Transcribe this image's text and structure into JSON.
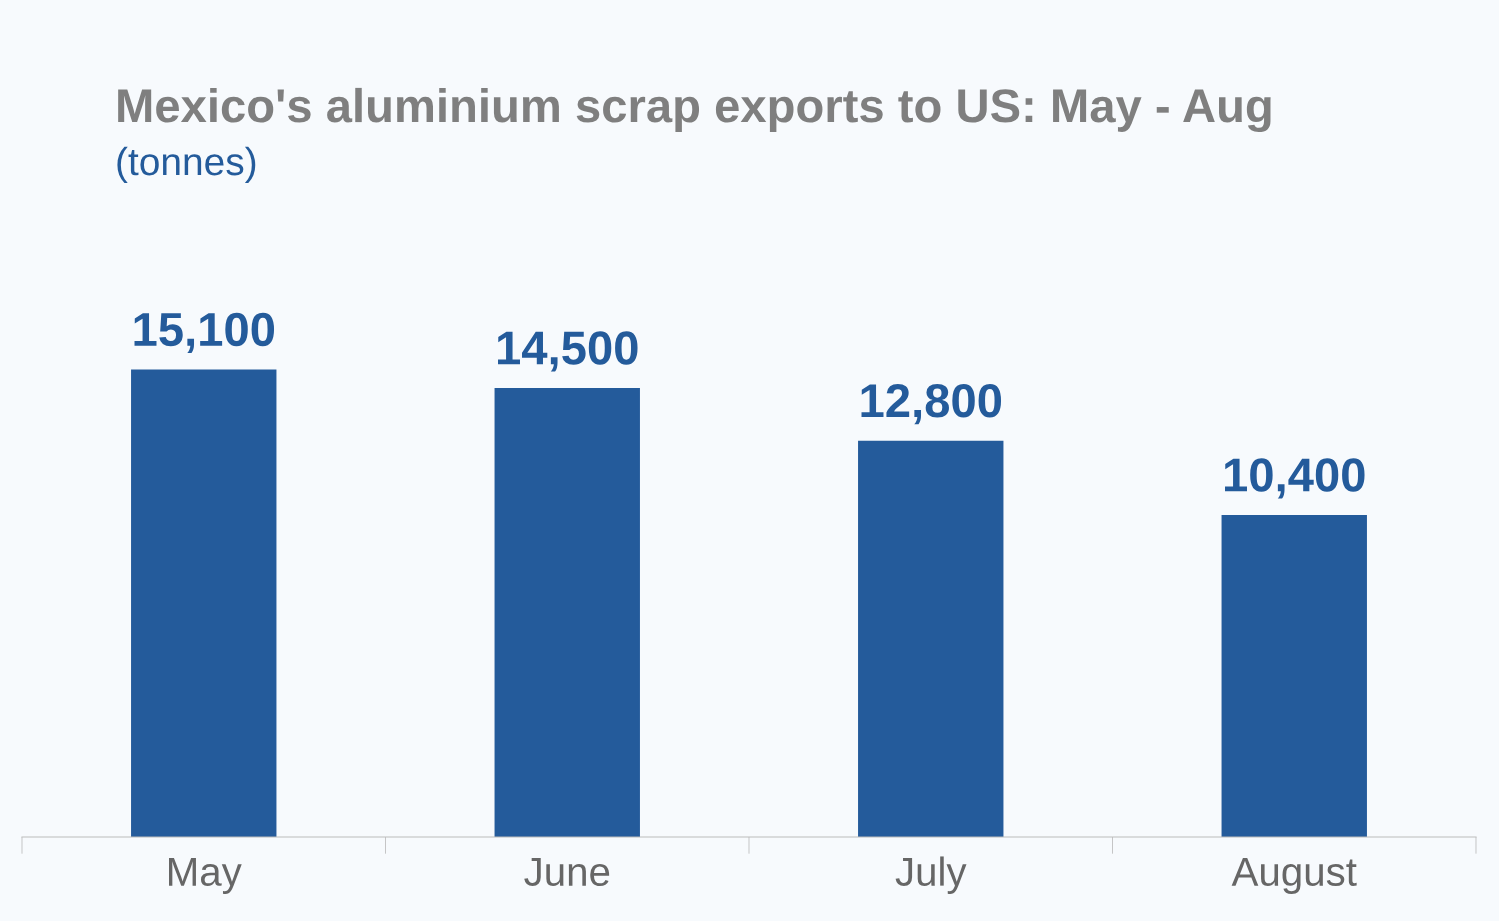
{
  "chart_data": {
    "type": "bar",
    "title": "Mexico's aluminium scrap exports to US: May - Aug",
    "subtitle": "(tonnes)",
    "categories": [
      "May",
      "June",
      "July",
      "August"
    ],
    "values": [
      15100,
      14500,
      12800,
      10400
    ],
    "color": "#245b9b",
    "value_labels": [
      "15,100",
      "14,500",
      "12,800",
      "10,400"
    ]
  }
}
